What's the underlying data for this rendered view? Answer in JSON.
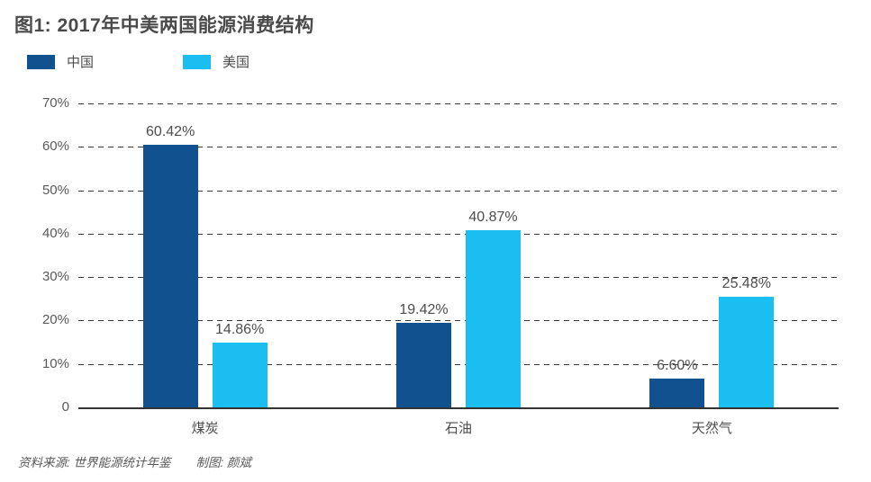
{
  "title": "图1: 2017年中美两国能源消费结构",
  "footer": {
    "source": "资料来源: 世界能源统计年鉴",
    "credit": "制图: 颜斌"
  },
  "colors": {
    "china_bar": "#11518F",
    "usa_bar": "#1ABEF0",
    "gridline": "#3a3a3a",
    "axis_line": "#333333",
    "text": "#4d4d4d"
  },
  "chart_data": {
    "type": "bar",
    "title": "图1: 2017年中美两国能源消费结构",
    "categories": [
      "煤炭",
      "石油",
      "天然气"
    ],
    "series": [
      {
        "name": "中国",
        "color": "#11518F",
        "values": [
          60.42,
          19.42,
          6.6
        ],
        "labels": [
          "60.42%",
          "19.42%",
          "6.60%"
        ]
      },
      {
        "name": "美国",
        "color": "#1ABEF0",
        "values": [
          14.86,
          40.87,
          25.48
        ],
        "labels": [
          "14.86%",
          "40.87%",
          "25.48%"
        ]
      }
    ],
    "xlabel": "",
    "ylabel": "",
    "ylim": [
      0,
      70
    ],
    "yticks": [
      {
        "value": 70,
        "label": "70%"
      },
      {
        "value": 60,
        "label": "60%"
      },
      {
        "value": 50,
        "label": "50%"
      },
      {
        "value": 40,
        "label": "40%"
      },
      {
        "value": 30,
        "label": "30%"
      },
      {
        "value": 20,
        "label": "20%"
      },
      {
        "value": 10,
        "label": "10%"
      },
      {
        "value": 0,
        "label": "0"
      }
    ],
    "grid": "horizontal-dashed",
    "legend_position": "top-left"
  }
}
